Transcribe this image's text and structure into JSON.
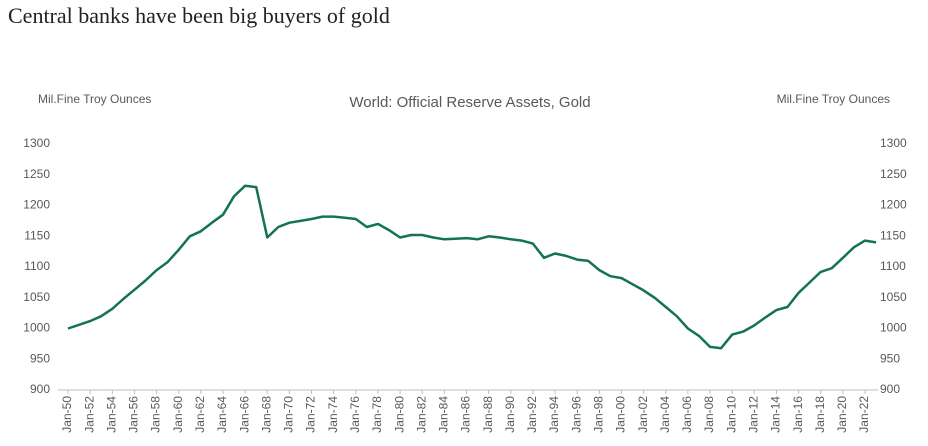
{
  "chart_data": {
    "type": "line",
    "title": "Central banks have been big buyers of gold",
    "subtitle": "World: Official Reserve Assets, Gold",
    "ylabel": "Mil.Fine Troy Ounces",
    "y2label": "Mil.Fine Troy Ounces",
    "categories": [
      "Jan-50",
      null,
      "Jan-52",
      null,
      "Jan-54",
      null,
      "Jan-56",
      null,
      "Jan-58",
      null,
      "Jan-60",
      null,
      "Jan-62",
      null,
      "Jan-64",
      null,
      "Jan-66",
      null,
      "Jan-68",
      null,
      "Jan-70",
      null,
      "Jan-72",
      null,
      "Jan-74",
      null,
      "Jan-76",
      null,
      "Jan-78",
      null,
      "Jan-80",
      null,
      "Jan-82",
      null,
      "Jan-84",
      null,
      "Jan-86",
      null,
      "Jan-88",
      null,
      "Jan-90",
      null,
      "Jan-92",
      null,
      "Jan-94",
      null,
      "Jan-96",
      null,
      "Jan-98",
      null,
      "Jan-00",
      null,
      "Jan-02",
      null,
      "Jan-04",
      null,
      "Jan-06",
      null,
      "Jan-08",
      null,
      "Jan-10",
      null,
      "Jan-12",
      null,
      "Jan-14",
      null,
      "Jan-16",
      null,
      "Jan-18",
      null,
      "Jan-20",
      null,
      "Jan-22",
      null
    ],
    "series": [
      {
        "name": "World: Official Reserve Assets, Gold",
        "color": "#137257",
        "values": [
          1000,
          1006,
          1012,
          1020,
          1032,
          1048,
          1063,
          1078,
          1095,
          1108,
          1128,
          1150,
          1158,
          1172,
          1185,
          1215,
          1232,
          1230,
          1148,
          1165,
          1172,
          1175,
          1178,
          1182,
          1182,
          1180,
          1178,
          1165,
          1170,
          1160,
          1148,
          1152,
          1152,
          1148,
          1145,
          1146,
          1147,
          1145,
          1150,
          1148,
          1145,
          1143,
          1138,
          1115,
          1122,
          1118,
          1112,
          1110,
          1095,
          1085,
          1082,
          1072,
          1062,
          1050,
          1035,
          1020,
          1000,
          988,
          970,
          968,
          990,
          995,
          1005,
          1018,
          1030,
          1035,
          1058,
          1075,
          1092,
          1098,
          1115,
          1132,
          1143,
          1140
        ]
      }
    ],
    "ylim": [
      900,
      1300
    ],
    "yticks": [
      900,
      950,
      1000,
      1050,
      1100,
      1150,
      1200,
      1250,
      1300
    ],
    "y2lim": [
      900,
      1300
    ],
    "y2ticks": [
      900,
      950,
      1000,
      1050,
      1100,
      1150,
      1200,
      1250,
      1300
    ]
  }
}
